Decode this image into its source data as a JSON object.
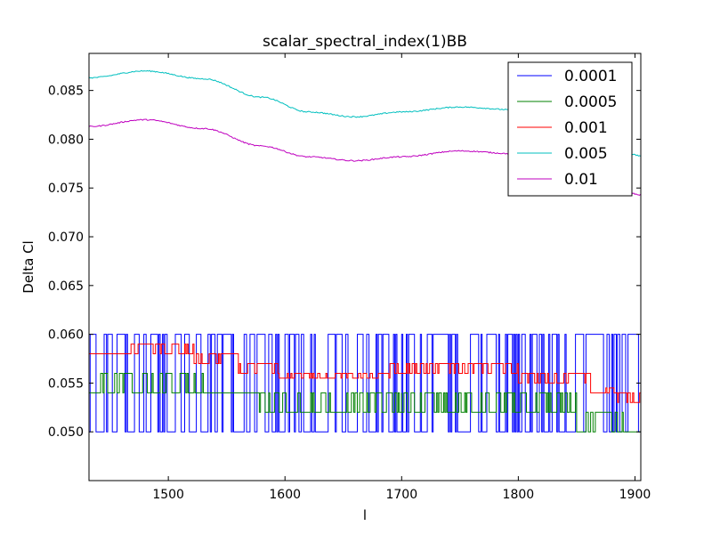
{
  "chart_data": {
    "type": "line",
    "title": "scalar_spectral_index(1)BB",
    "xlabel": "l",
    "ylabel": "Delta Cl",
    "xlim": [
      1432,
      1905
    ],
    "ylim": [
      0.045,
      0.0888
    ],
    "xticks": [
      1500,
      1600,
      1700,
      1800,
      1900
    ],
    "yticks": [
      0.05,
      0.055,
      0.06,
      0.065,
      0.07,
      0.075,
      0.08,
      0.085
    ],
    "ytick_labels": [
      "0.050",
      "0.055",
      "0.060",
      "0.065",
      "0.070",
      "0.075",
      "0.080",
      "0.085"
    ],
    "xtick_labels": [
      "1500",
      "1600",
      "1700",
      "1800",
      "1900"
    ],
    "grid": false,
    "legend_position": "top-right",
    "series": [
      {
        "name": "0.0001",
        "color": "#0000ff",
        "style": "noisy-step",
        "levels": [
          0.05,
          0.06
        ],
        "x": [
          1432,
          1905
        ]
      },
      {
        "name": "0.0005",
        "color": "#008000",
        "style": "noisy-step",
        "segments": [
          {
            "x": [
              1432,
              1440
            ],
            "base": 0.054,
            "alt": 0.054
          },
          {
            "x": [
              1440,
              1530
            ],
            "base": 0.054,
            "alt": 0.056
          },
          {
            "x": [
              1530,
              1578
            ],
            "base": 0.054,
            "alt": 0.054
          },
          {
            "x": [
              1578,
              1610
            ],
            "base": 0.052,
            "alt": 0.054
          },
          {
            "x": [
              1610,
              1700
            ],
            "base": 0.052,
            "alt": 0.054
          },
          {
            "x": [
              1700,
              1795
            ],
            "base": 0.052,
            "alt": 0.054
          },
          {
            "x": [
              1795,
              1850
            ],
            "base": 0.052,
            "alt": 0.054
          },
          {
            "x": [
              1850,
              1890
            ],
            "base": 0.05,
            "alt": 0.052
          },
          {
            "x": [
              1890,
              1905
            ],
            "base": 0.05,
            "alt": 0.05
          }
        ]
      },
      {
        "name": "0.001",
        "color": "#ff0000",
        "style": "noisy-step",
        "segments": [
          {
            "x": [
              1432,
              1458
            ],
            "base": 0.058,
            "alt": 0.058
          },
          {
            "x": [
              1458,
              1522
            ],
            "base": 0.058,
            "alt": 0.059
          },
          {
            "x": [
              1522,
              1560
            ],
            "base": 0.057,
            "alt": 0.058
          },
          {
            "x": [
              1560,
              1595
            ],
            "base": 0.056,
            "alt": 0.057
          },
          {
            "x": [
              1595,
              1690
            ],
            "base": 0.0555,
            "alt": 0.056
          },
          {
            "x": [
              1690,
              1800
            ],
            "base": 0.056,
            "alt": 0.057
          },
          {
            "x": [
              1800,
              1862
            ],
            "base": 0.055,
            "alt": 0.056
          },
          {
            "x": [
              1862,
              1885
            ],
            "base": 0.054,
            "alt": 0.0545
          },
          {
            "x": [
              1885,
              1905
            ],
            "base": 0.053,
            "alt": 0.054
          }
        ]
      },
      {
        "name": "0.005",
        "color": "#00bfbf",
        "style": "smooth",
        "x": [
          1432,
          1480,
          1530,
          1580,
          1620,
          1660,
          1700,
          1750,
          1800,
          1860,
          1905
        ],
        "y": [
          0.0863,
          0.087,
          0.0862,
          0.0843,
          0.0828,
          0.0823,
          0.0828,
          0.0833,
          0.083,
          0.0812,
          0.0783
        ]
      },
      {
        "name": "0.01",
        "color": "#bf00bf",
        "style": "smooth",
        "x": [
          1432,
          1480,
          1530,
          1580,
          1620,
          1660,
          1700,
          1750,
          1800,
          1860,
          1905
        ],
        "y": [
          0.0813,
          0.082,
          0.0811,
          0.0793,
          0.0782,
          0.0778,
          0.0782,
          0.0788,
          0.0785,
          0.077,
          0.0743
        ]
      }
    ]
  }
}
